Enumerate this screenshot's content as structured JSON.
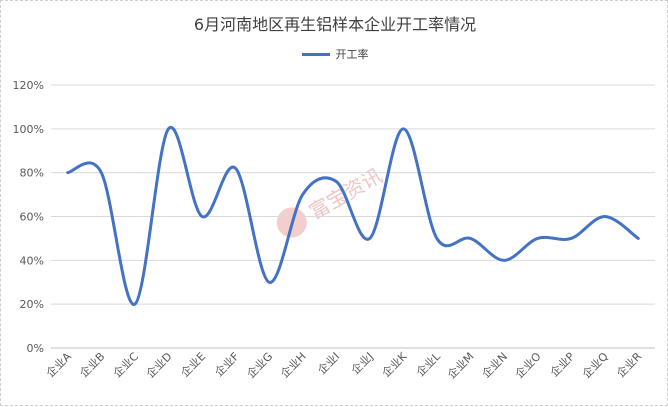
{
  "chart_data": {
    "type": "line",
    "title": "6月河南地区再生铝样本企业开工率情况",
    "categories": [
      "企业A",
      "企业B",
      "企业C",
      "企业D",
      "企业E",
      "企业F",
      "企业G",
      "企业H",
      "企业I",
      "企业J",
      "企业K",
      "企业L",
      "企业M",
      "企业N",
      "企业O",
      "企业P",
      "企业Q",
      "企业R"
    ],
    "series": [
      {
        "name": "开工率",
        "color": "#4472C4",
        "values": [
          80,
          80,
          20,
          100,
          60,
          82,
          30,
          70,
          76,
          50,
          100,
          50,
          50,
          40,
          50,
          50,
          60,
          50
        ]
      }
    ],
    "yticks": [
      "0%",
      "20%",
      "40%",
      "60%",
      "80%",
      "100%",
      "120%"
    ],
    "ylim": [
      0,
      120
    ],
    "grid": true,
    "legend": "top",
    "smooth": true
  },
  "watermark": {
    "text": "富宝资讯"
  }
}
